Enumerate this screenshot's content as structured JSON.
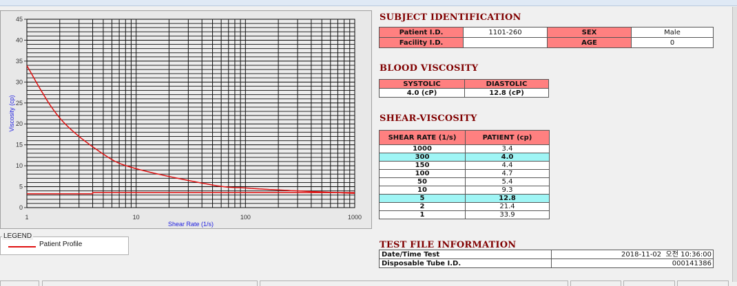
{
  "chart_data": {
    "type": "line",
    "xlabel": "Shear Rate (1/s)",
    "ylabel": "Viscosity (cp)",
    "xscale": "log",
    "xlim": [
      1,
      1000
    ],
    "ylim": [
      0,
      45
    ],
    "xticks": [
      "1",
      "10",
      "100",
      "1000"
    ],
    "yticks": [
      "0",
      "5",
      "10",
      "15",
      "20",
      "25",
      "30",
      "35",
      "40",
      "45"
    ],
    "grid": true,
    "legend": "bottom-left",
    "series": [
      {
        "name": "Patient Profile",
        "color": "#e01010",
        "x": [
          1,
          2,
          5,
          10,
          50,
          100,
          150,
          300,
          1000
        ],
        "y": [
          33.9,
          21.4,
          12.8,
          9.3,
          5.4,
          4.7,
          4.4,
          4.0,
          3.4
        ]
      },
      {
        "color": "#e01010",
        "x": [
          1,
          4,
          4,
          1000
        ],
        "y": [
          3.3,
          3.3,
          3.6,
          3.6
        ]
      }
    ]
  },
  "legend": {
    "title": "LEGEND",
    "items": [
      "Patient Profile"
    ]
  },
  "subject": {
    "title": "SUBJECT IDENTIFICATION",
    "patient_id_label": "Patient I.D.",
    "patient_id": "1101-260",
    "sex_label": "SEX",
    "sex": "Male",
    "facility_id_label": "Facility I.D.",
    "facility_id": "",
    "age_label": "AGE",
    "age": "0"
  },
  "blood": {
    "title": "BLOOD VISCOSITY",
    "systolic_label": "SYSTOLIC",
    "diastolic_label": "DIASTOLIC",
    "systolic": "4.0 (cP)",
    "diastolic": "12.8 (cP)"
  },
  "shear": {
    "title": "SHEAR-VISCOSITY",
    "headers": [
      "SHEAR RATE (1/s)",
      "PATIENT (cp)"
    ],
    "rows": [
      {
        "rate": "1000",
        "value": "3.4"
      },
      {
        "rate": "300",
        "value": "4.0",
        "highlight": true
      },
      {
        "rate": "150",
        "value": "4.4"
      },
      {
        "rate": "100",
        "value": "4.7"
      },
      {
        "rate": "50",
        "value": "5.4"
      },
      {
        "rate": "10",
        "value": "9.3"
      },
      {
        "rate": "5",
        "value": "12.8",
        "highlight": true
      },
      {
        "rate": "2",
        "value": "21.4"
      },
      {
        "rate": "1",
        "value": "33.9"
      }
    ],
    "highlight_color": "#9ff5f5"
  },
  "testfile": {
    "title": "TEST FILE INFORMATION",
    "date_label": "Date/Time Test",
    "date": "2018-11-02  오전 10:36:00",
    "tube_label": "Disposable Tube I.D.",
    "tube": "000141386"
  },
  "colors": {
    "header_bg": "#ff8080",
    "title": "#800000",
    "curve": "#e01010",
    "axis_label": "#2020e0"
  }
}
